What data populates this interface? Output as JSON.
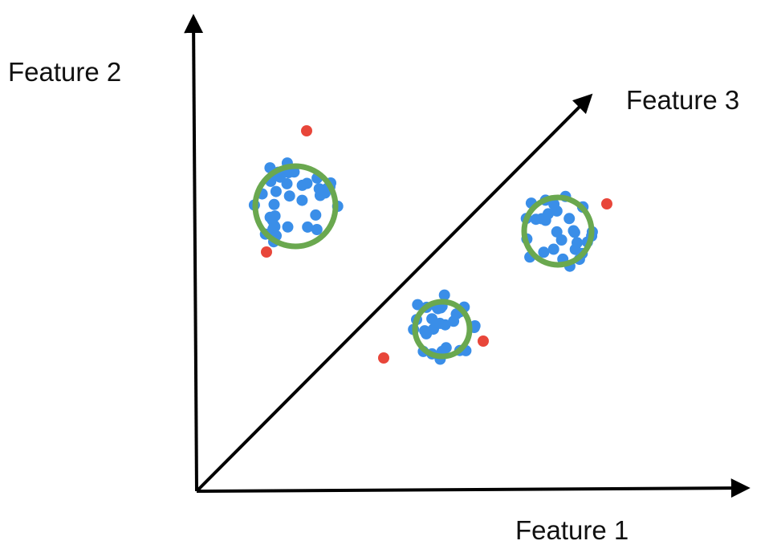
{
  "axes": {
    "feature_1": "Feature 1",
    "feature_2": "Feature 2",
    "feature_3": "Feature 3"
  },
  "colors": {
    "axis": "#000000",
    "inlier": "#3a8ee8",
    "outlier": "#e8463a",
    "cluster_ring": "#6aa84f"
  },
  "chart_data": {
    "type": "scatter",
    "title": "",
    "xlabel": "Feature 1",
    "ylabel": "Feature 2",
    "zlabel": "Feature 3",
    "clusters": [
      {
        "inlier_count": 38,
        "outlier_count": 2
      },
      {
        "inlier_count": 30,
        "outlier_count": 1
      },
      {
        "inlier_count": 28,
        "outlier_count": 2
      }
    ]
  }
}
